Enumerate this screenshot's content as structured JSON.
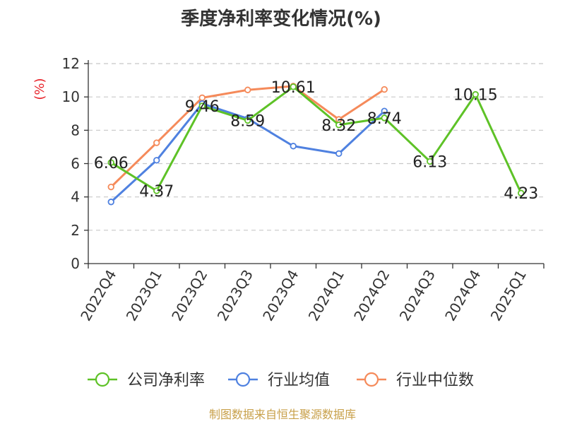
{
  "chart_data": {
    "type": "line",
    "title": "季度净利率变化情况(%)",
    "ylabel": "(%)",
    "xlabel": "",
    "categories": [
      "2022Q4",
      "2023Q1",
      "2023Q2",
      "2023Q3",
      "2023Q4",
      "2024Q1",
      "2024Q2",
      "2024Q3",
      "2024Q4",
      "2025Q1"
    ],
    "ylim": [
      0,
      12
    ],
    "yticks": [
      "0",
      "2",
      "4",
      "6",
      "8",
      "10",
      "12"
    ],
    "grid": true,
    "legend_position": "bottom",
    "series": [
      {
        "name": "公司净利率",
        "color": "#5ec227",
        "values": [
          6.06,
          4.37,
          9.46,
          8.59,
          10.61,
          8.32,
          8.74,
          6.13,
          10.15,
          4.23
        ],
        "labels": [
          "6.06",
          "4.37",
          "9.46",
          "8.59",
          "10.61",
          "8.32",
          "8.74",
          "6.13",
          "10.15",
          "4.23"
        ]
      },
      {
        "name": "行业均值",
        "color": "#4f81e0",
        "values": [
          3.7,
          6.2,
          9.6,
          8.7,
          7.05,
          6.6,
          9.15,
          null,
          null,
          null
        ]
      },
      {
        "name": "行业中位数",
        "color": "#f58a5a",
        "values": [
          4.6,
          7.25,
          9.95,
          10.42,
          10.65,
          8.65,
          10.45,
          null,
          null,
          null
        ]
      }
    ]
  },
  "source": "制图数据来自恒生聚源数据库"
}
